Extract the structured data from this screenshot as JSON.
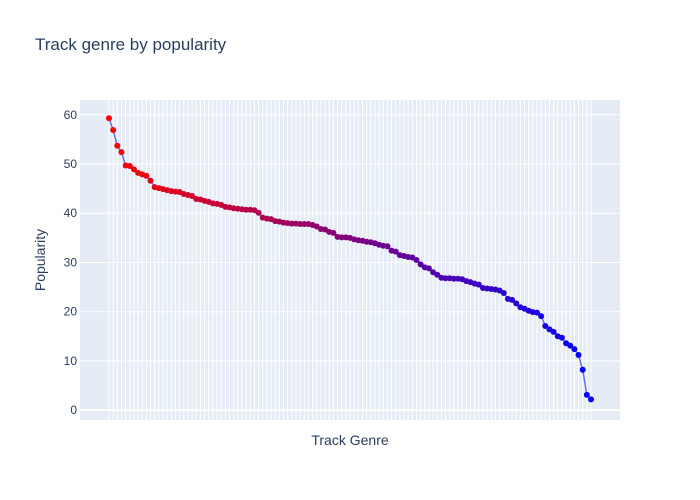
{
  "chart_data": {
    "type": "line",
    "mode": "lines+markers",
    "title": "Track genre by popularity",
    "xlabel": "Track Genre",
    "ylabel": "Popularity",
    "ylim": [
      -2.0,
      63.0
    ],
    "yticks": [
      0,
      10,
      20,
      30,
      40,
      50,
      60
    ],
    "grid": true,
    "legend": "none",
    "x_tick_labels_visible": false,
    "colors": {
      "plot_background": "#e5ecf6",
      "gridline": "#ffffff",
      "line": "#636efa",
      "marker_start": "#ff0000",
      "marker_end": "#0000ff",
      "text": "#2a3f5f"
    },
    "series": [
      {
        "values": [
          59.3,
          56.9,
          53.7,
          52.4,
          49.7,
          49.6,
          48.9,
          48.2,
          47.9,
          47.6,
          46.6,
          45.3,
          45.1,
          44.9,
          44.7,
          44.5,
          44.4,
          44.3,
          43.9,
          43.7,
          43.5,
          42.9,
          42.8,
          42.5,
          42.3,
          42.0,
          41.9,
          41.7,
          41.3,
          41.2,
          41.0,
          40.9,
          40.8,
          40.7,
          40.7,
          40.6,
          40.1,
          39.1,
          38.9,
          38.8,
          38.4,
          38.3,
          38.1,
          38.0,
          37.9,
          37.9,
          37.8,
          37.8,
          37.8,
          37.6,
          37.3,
          36.8,
          36.7,
          36.2,
          36.0,
          35.2,
          35.1,
          35.1,
          35.0,
          34.7,
          34.5,
          34.4,
          34.2,
          34.1,
          33.9,
          33.6,
          33.4,
          33.3,
          32.4,
          32.2,
          31.5,
          31.3,
          31.1,
          31.0,
          30.5,
          29.6,
          29.0,
          28.8,
          28.0,
          27.5,
          26.9,
          26.8,
          26.8,
          26.7,
          26.7,
          26.6,
          26.2,
          26.0,
          25.7,
          25.5,
          24.8,
          24.7,
          24.6,
          24.5,
          24.3,
          23.8,
          22.6,
          22.4,
          21.7,
          20.9,
          20.6,
          20.2,
          19.9,
          19.8,
          19.1,
          17.1,
          16.4,
          15.9,
          15.0,
          14.7,
          13.6,
          13.1,
          12.4,
          11.2,
          8.2,
          3.1,
          2.2
        ]
      }
    ]
  }
}
